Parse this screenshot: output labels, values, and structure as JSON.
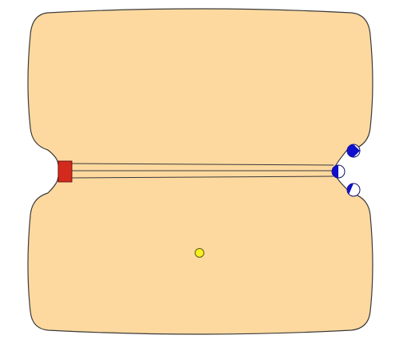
{
  "game": {
    "kind": "board-puzzle",
    "colors": {
      "background": "#ffffff",
      "board_fill": "#fdd9a0",
      "board_stroke": "#3a3a3a",
      "goal_fill": "#d42a1e",
      "goal_stroke": "#6a1010",
      "peg_fill": "#1010cc",
      "peg_stroke": "#101060",
      "hole_fill": "#ffffff",
      "ball_fill": "#f7f020",
      "ball_stroke": "#5a5a10"
    },
    "lanes": {
      "count": 3
    },
    "pegs": [
      {
        "id": "top",
        "filled_side": "left"
      },
      {
        "id": "middle",
        "filled_side": "left"
      },
      {
        "id": "bottom",
        "filled_side": "left"
      }
    ],
    "goal": {
      "shape": "square"
    },
    "ball": {
      "shape": "circle"
    }
  }
}
